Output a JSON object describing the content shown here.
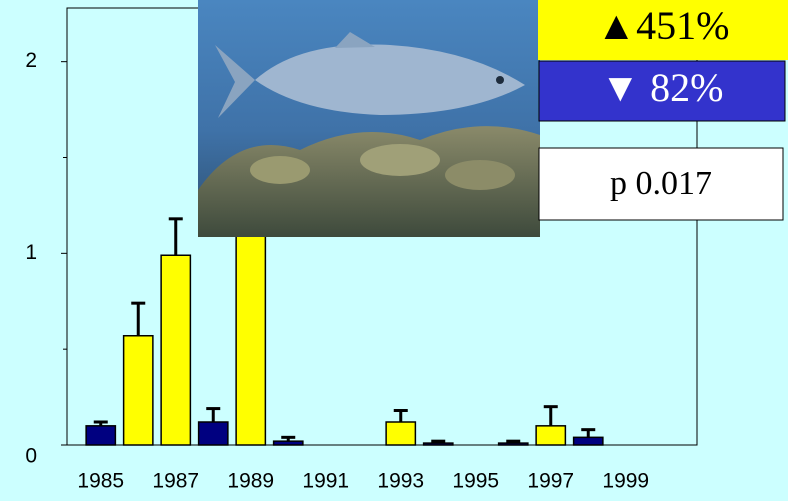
{
  "chart_data": {
    "type": "bar",
    "categories": [
      "1985",
      null,
      "1987",
      null,
      "1989",
      null,
      "1991",
      null,
      "1993",
      null,
      "1995",
      null,
      "1997",
      null,
      "1999",
      null
    ],
    "values": [
      0.1,
      0.57,
      0.99,
      0.12,
      1.11,
      0.02,
      0,
      0,
      0.12,
      0.01,
      0,
      0.01,
      0.1,
      0.04,
      0,
      0
    ],
    "errors": [
      0.02,
      0.17,
      0.19,
      0.07,
      0.97,
      0.02,
      0,
      0,
      0.06,
      0.01,
      0,
      0.01,
      0.1,
      0.04,
      0,
      0
    ],
    "colors": [
      "#000080",
      "#ffff00",
      "#ffff00",
      "#000080",
      "#ffff00",
      "#000080",
      "#000080",
      "#000080",
      "#ffff00",
      "#000080",
      "#000080",
      "#000080",
      "#ffff00",
      "#000080",
      "#000080",
      "#000080"
    ],
    "ylim": [
      0,
      2.28
    ],
    "yticks": [
      0,
      1,
      2
    ],
    "minor_yticks": [
      0.5,
      1.5
    ],
    "annotations": {
      "increase": "▲451%",
      "decrease": "▼ 82%",
      "p_value": "p  0.017"
    }
  }
}
